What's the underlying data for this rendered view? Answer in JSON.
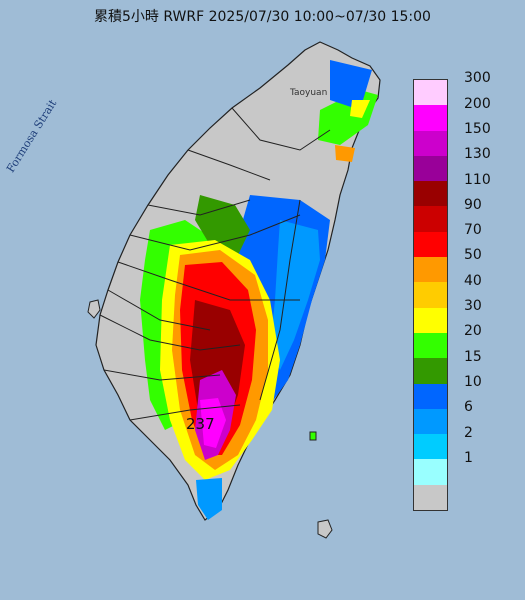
{
  "map": {
    "title": "累積5小時 RWRF 2025/07/30 10:00~07/30 15:00",
    "sea_label": "Formosa Strait",
    "city_label": "Taoyuan",
    "max_value_label": "237",
    "colors": {
      "sea": "#9fbcd6",
      "land": "#c8c8c8",
      "border": "#222222"
    }
  },
  "legend": {
    "labels": [
      "300",
      "200",
      "150",
      "130",
      "110",
      "90",
      "70",
      "50",
      "40",
      "30",
      "20",
      "15",
      "10",
      "6",
      "2",
      "1"
    ],
    "colors": [
      "#ffccff",
      "#ff00ff",
      "#cc00cc",
      "#990099",
      "#990000",
      "#cc0000",
      "#ff0000",
      "#ff9900",
      "#ffcc00",
      "#ffff00",
      "#33ff00",
      "#339900",
      "#0066ff",
      "#0099ff",
      "#00ccff",
      "#99ffff",
      "#c8c8c8"
    ]
  }
}
